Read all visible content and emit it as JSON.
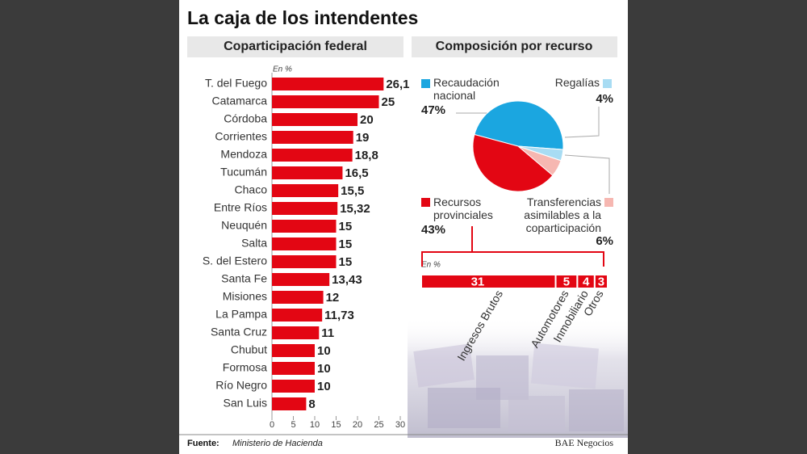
{
  "title": "La caja de los intendentes",
  "footer": {
    "source_label": "Fuente:",
    "source": "Ministerio de Hacienda",
    "credit": "BAE Negocios"
  },
  "chart_data": [
    {
      "type": "bar",
      "orientation": "horizontal",
      "title": "Coparticipación federal",
      "unit_label": "En %",
      "categories": [
        "T. del Fuego",
        "Catamarca",
        "Córdoba",
        "Corrientes",
        "Mendoza",
        "Tucumán",
        "Chaco",
        "Entre Ríos",
        "Neuquén",
        "Salta",
        "S. del Estero",
        "Santa Fe",
        "Misiones",
        "La Pampa",
        "Santa Cruz",
        "Chubut",
        "Formosa",
        "Río Negro",
        "San Luis"
      ],
      "values": [
        26.1,
        25,
        20,
        19,
        18.8,
        16.5,
        15.5,
        15.32,
        15,
        15,
        15,
        13.43,
        12,
        11.73,
        11,
        10,
        10,
        10,
        8
      ],
      "value_labels": [
        "26,1",
        "25",
        "20",
        "19",
        "18,8",
        "16,5",
        "15,5",
        "15,32",
        "15",
        "15",
        "15",
        "13,43",
        "12",
        "11,73",
        "11",
        "10",
        "10",
        "10",
        "8"
      ],
      "color": "#e30613",
      "xlim": [
        0,
        30
      ],
      "xticks": [
        0,
        5,
        10,
        15,
        20,
        25,
        30
      ]
    },
    {
      "type": "pie",
      "title": "Composición por recurso",
      "categories": [
        "Recaudación nacional",
        "Regalías",
        "Transferencias asimilables a la coparticipación",
        "Recursos provinciales"
      ],
      "values": [
        47,
        4,
        6,
        43
      ],
      "value_labels": [
        "47%",
        "4%",
        "6%",
        "43%"
      ],
      "colors": [
        "#1ba6e0",
        "#a8dcf3",
        "#f6b7b1",
        "#e30613"
      ]
    },
    {
      "type": "stacked_bar",
      "unit_label": "En %",
      "categories": [
        "Ingresos Brutos",
        "Automotores",
        "Inmobiliario",
        "Otros"
      ],
      "values": [
        31,
        5,
        4,
        3
      ],
      "color": "#e30613"
    }
  ]
}
